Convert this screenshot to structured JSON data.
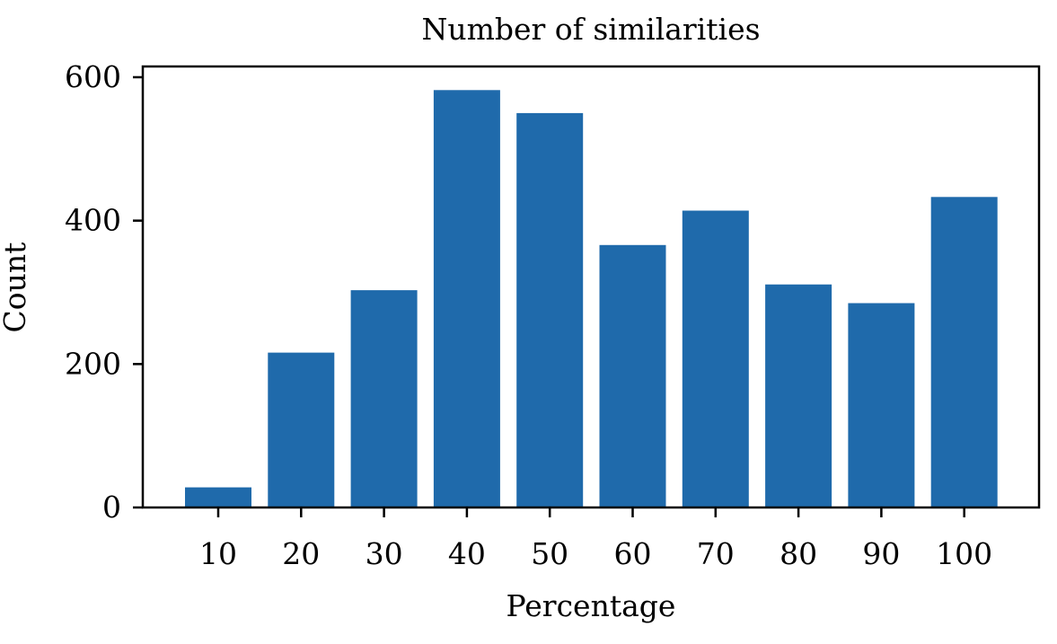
{
  "chart_data": {
    "type": "bar",
    "title": "Number of similarities",
    "xlabel": "Percentage",
    "ylabel": "Count",
    "categories": [
      "10",
      "20",
      "30",
      "40",
      "50",
      "60",
      "70",
      "80",
      "90",
      "100"
    ],
    "values": [
      28,
      216,
      303,
      582,
      550,
      366,
      414,
      311,
      285,
      433
    ],
    "ylim": [
      0,
      615
    ],
    "yticks": [
      0,
      200,
      400,
      600
    ],
    "bar_color": "#1f6aab",
    "grid": false,
    "legend": "none"
  }
}
